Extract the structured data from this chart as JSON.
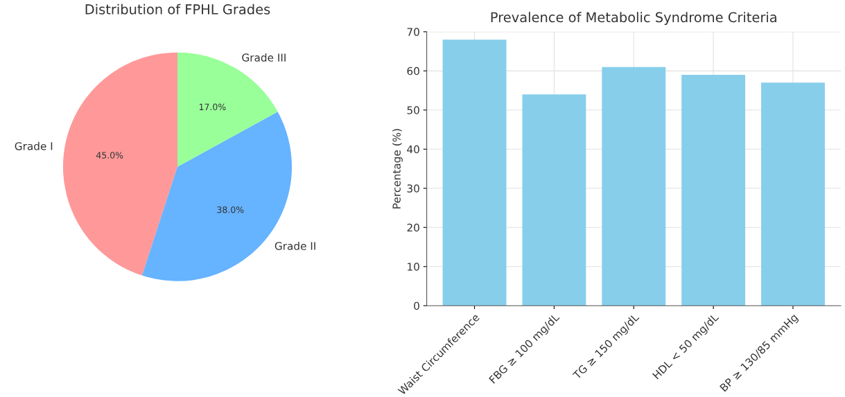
{
  "chart_data": [
    {
      "type": "pie",
      "title": "Distribution of FPHL Grades",
      "categories": [
        "Grade I",
        "Grade II",
        "Grade III"
      ],
      "values": [
        45,
        38,
        17
      ],
      "colors": [
        "#ff9999",
        "#66b3ff",
        "#99ff99"
      ],
      "value_labels": [
        "45.0%",
        "38.0%",
        "17.0%"
      ]
    },
    {
      "type": "bar",
      "title": "Prevalence of Metabolic Syndrome Criteria",
      "ylabel": "Percentage (%)",
      "categories": [
        "Waist Circumference",
        "FBG ≥ 100 mg/dL",
        "TG ≥ 150 mg/dL",
        "HDL < 50 mg/dL",
        "BP ≥ 130/85 mmHg"
      ],
      "values": [
        68,
        54,
        61,
        59,
        57
      ],
      "color": "#87ceeb",
      "ylim": [
        0,
        70
      ],
      "yticks": [
        0,
        10,
        20,
        30,
        40,
        50,
        60,
        70
      ],
      "grid": true
    }
  ]
}
